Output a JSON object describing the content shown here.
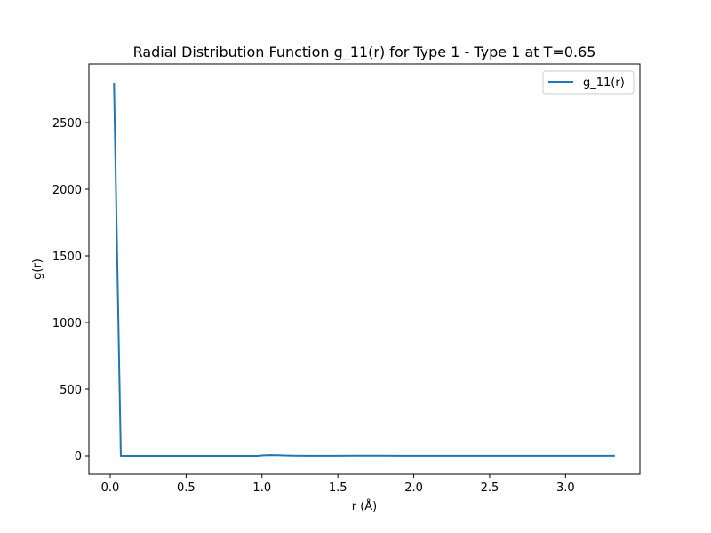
{
  "chart_data": {
    "type": "line",
    "title": "Radial Distribution Function g_11(r) for Type 1 - Type 1 at T=0.65",
    "xlabel": "r (Å)",
    "ylabel": "g(r)",
    "xlim": [
      -0.1405,
      3.49
    ],
    "ylim": [
      -140,
      2940
    ],
    "xticks": [
      0.0,
      0.5,
      1.0,
      1.5,
      2.0,
      2.5,
      3.0
    ],
    "xtick_labels": [
      "0.0",
      "0.5",
      "1.0",
      "1.5",
      "2.0",
      "2.5",
      "3.0"
    ],
    "yticks": [
      0,
      500,
      1000,
      1500,
      2000,
      2500
    ],
    "ytick_labels": [
      "0",
      "500",
      "1000",
      "1500",
      "2000",
      "2500"
    ],
    "grid": false,
    "legend": "upper right",
    "series": [
      {
        "name": "g_11(r)",
        "color": "#1f77b4",
        "x": [
          0.025,
          0.07,
          0.1,
          0.2,
          0.3,
          0.4,
          0.5,
          0.6,
          0.7,
          0.8,
          0.9,
          0.97,
          1.0,
          1.05,
          1.1,
          1.15,
          1.2,
          1.3,
          1.4,
          1.5,
          1.6,
          1.7,
          1.8,
          1.9,
          2.0,
          2.2,
          2.4,
          2.6,
          2.8,
          3.0,
          3.2,
          3.325
        ],
        "y": [
          2800,
          0,
          0,
          0,
          0,
          0,
          0,
          0,
          0,
          0,
          0,
          0.3,
          3.5,
          5.5,
          5.0,
          3.5,
          2.0,
          0.8,
          0.6,
          0.9,
          1.3,
          1.5,
          1.4,
          1.2,
          1.1,
          1.0,
          1.0,
          1.0,
          1.0,
          1.0,
          1.0,
          1.0
        ]
      }
    ]
  }
}
